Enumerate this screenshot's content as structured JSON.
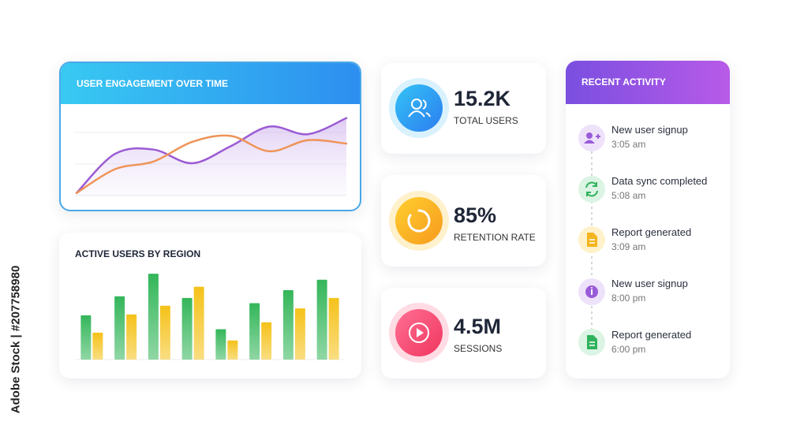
{
  "watermark": "Adobe Stock | #207758980",
  "chart_data": [
    {
      "type": "line",
      "title": "USER ENGAGEMENT OVER TIME",
      "ylim": [
        0,
        100
      ],
      "series": [
        {
          "color": "#9b5bd4",
          "values": [
            3,
            49,
            54,
            38,
            58,
            81,
            72,
            91
          ]
        },
        {
          "color": "#ee9458",
          "values": [
            3,
            31,
            40,
            63,
            70,
            52,
            65,
            61
          ]
        }
      ]
    },
    {
      "type": "bar",
      "title": "ACTIVE USERS BY REGION",
      "ylim": [
        0,
        100
      ],
      "series": [
        {
          "color": "#34b65a",
          "values": [
            51,
            73,
            99,
            71,
            35,
            65,
            80,
            92
          ]
        },
        {
          "color": "#f5c21a",
          "values": [
            31,
            52,
            62,
            84,
            22,
            43,
            59,
            71
          ]
        }
      ]
    }
  ],
  "stats": [
    {
      "value": "15.2K",
      "label": "TOTAL USERS"
    },
    {
      "value": "85%",
      "label": "RETENTION RATE"
    },
    {
      "value": "4.5M",
      "label": "SESSIONS"
    }
  ],
  "activity": {
    "title": "RECENT ACTIVITY",
    "items": [
      {
        "text": "New user signup",
        "time": "3:05 am"
      },
      {
        "text": "Data sync completed",
        "time": "5:08 am"
      },
      {
        "text": "Report generated",
        "time": "3:09 am"
      },
      {
        "text": "New user signup",
        "time": "8:00 pm"
      },
      {
        "text": "Report generated",
        "time": "6:00 pm"
      }
    ]
  }
}
